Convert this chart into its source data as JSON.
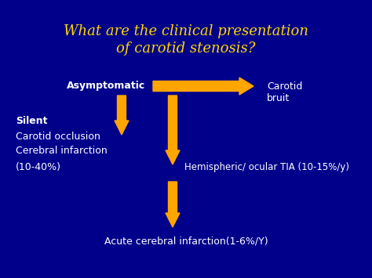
{
  "background_color": "#00008B",
  "title_line1": "What are the clinical presentation",
  "title_line2": "of carotid stenosis?",
  "title_color": "#FFD700",
  "title_fontsize": 13,
  "arrow_color": "#FFA500",
  "text_color": "#FFFFFF",
  "asymptomatic_label": "Asymptomatic",
  "carotid_bruit_label": "Carotid\nbruit",
  "silent_label": "Silent",
  "carotid_occlusion_label": "Carotid occlusion",
  "cerebral_infarction_label": "Cerebral infarction",
  "percent_label": "(10-40%)",
  "tia_label": "Hemispheric/ ocular TIA (10-15%/y)",
  "acute_label": "Acute cerebral infarction(1-6%/Y)",
  "body_fontsize": 9,
  "small_fontsize": 8.5
}
